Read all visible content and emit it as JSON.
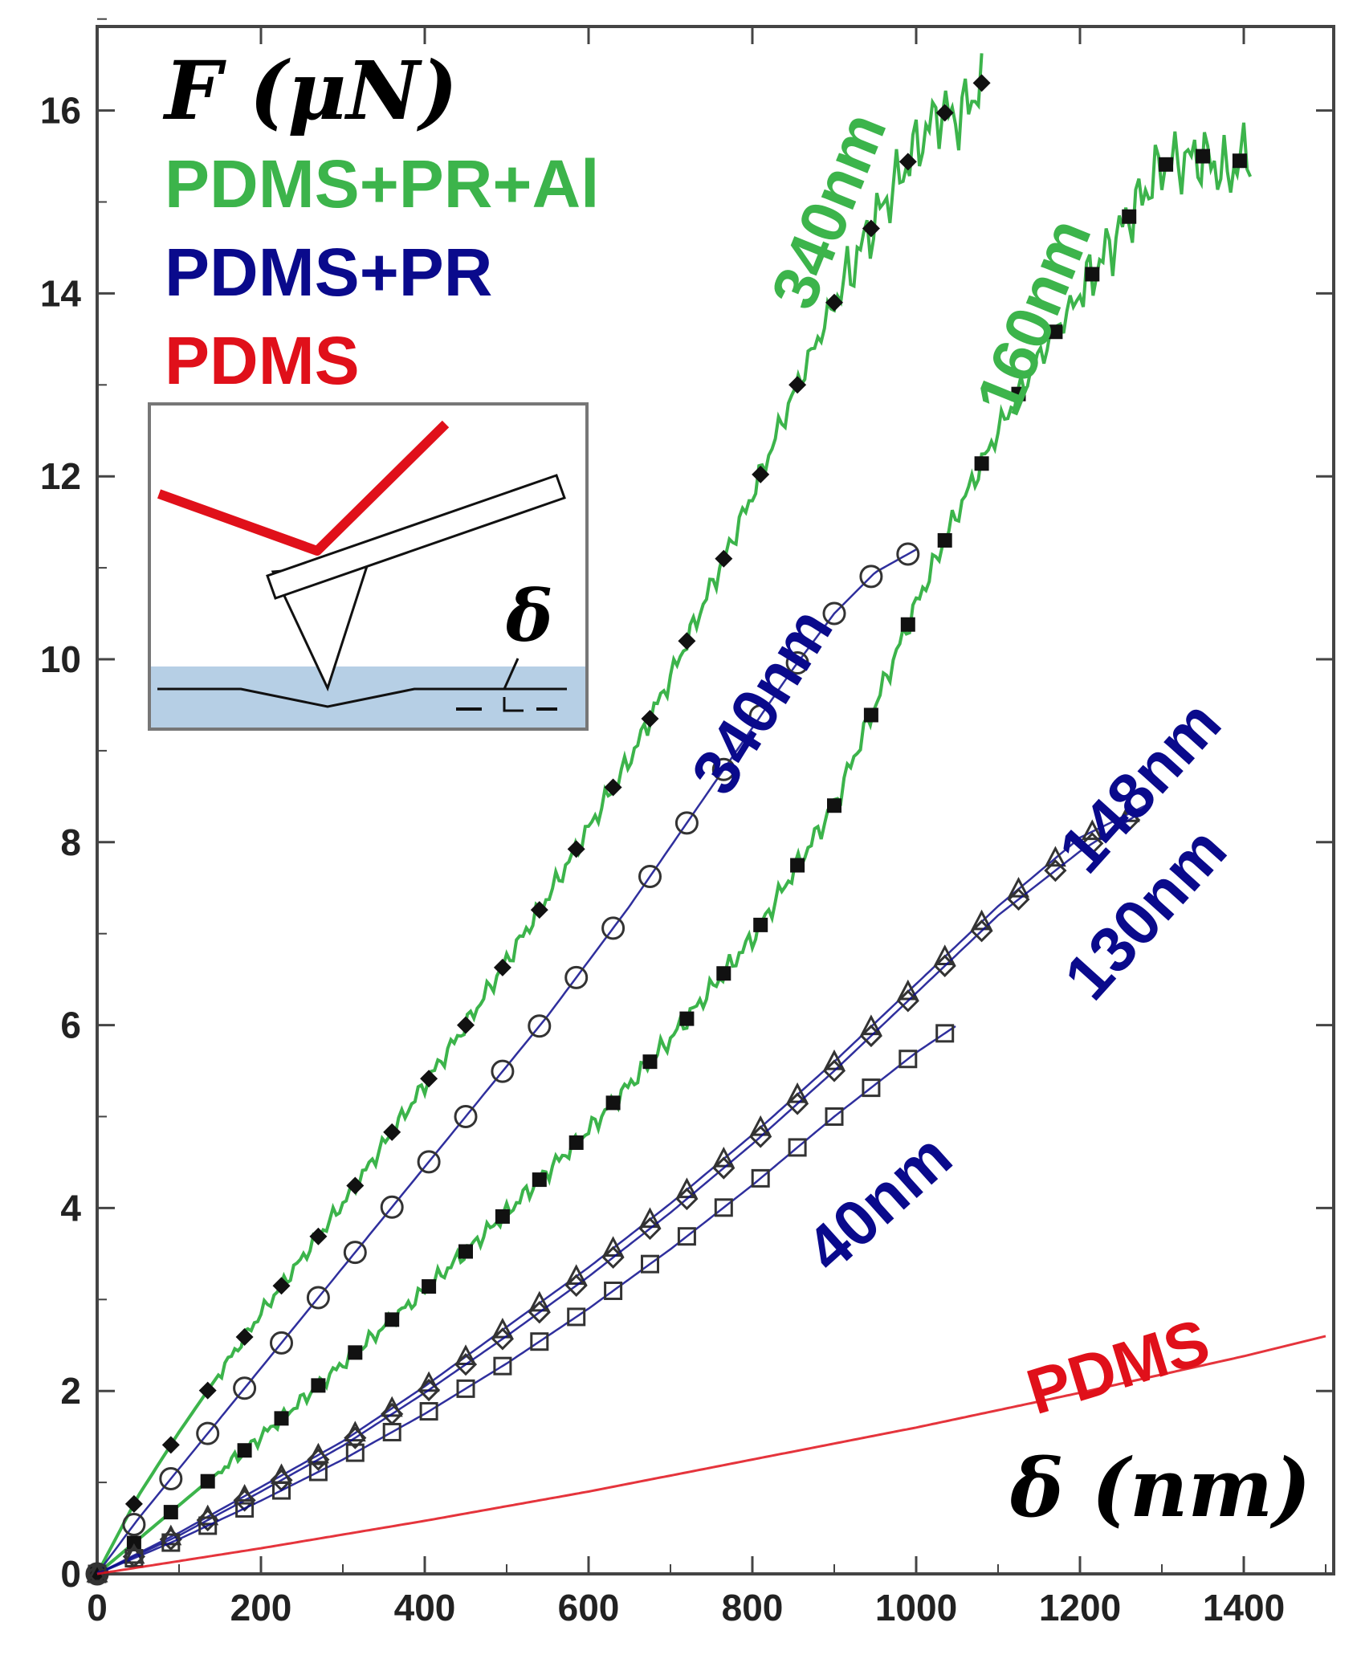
{
  "chart_data": {
    "type": "line",
    "ylabel": "F (μN)",
    "xlabel": "δ (nm)",
    "xlim": [
      0,
      1500
    ],
    "ylim": [
      0,
      17
    ],
    "xticks": [
      0,
      200,
      400,
      600,
      800,
      1000,
      1200,
      1400
    ],
    "yticks": [
      0,
      2,
      4,
      6,
      8,
      10,
      12,
      14,
      16
    ],
    "grid": false,
    "legend": {
      "placement": "top-left",
      "entries": [
        {
          "label": "PDMS+PR+Al",
          "color": "#3cb44b"
        },
        {
          "label": "PDMS+PR",
          "color": "#0a0a8c"
        },
        {
          "label": "PDMS",
          "color": "#e0101a"
        }
      ]
    },
    "inset": {
      "symbol": "δ",
      "description_color": "#a9c7e0"
    },
    "series": [
      {
        "group": "PDMS+PR+Al",
        "label": "340nm",
        "color": "#3cb44b",
        "marker": "filled-diamond",
        "x": [
          0,
          50,
          100,
          150,
          200,
          250,
          300,
          350,
          400,
          450,
          500,
          550,
          600,
          650,
          700,
          750,
          800,
          850,
          900,
          950,
          1000,
          1030,
          1050,
          1080
        ],
        "y": [
          0,
          0.85,
          1.55,
          2.2,
          2.85,
          3.45,
          4.05,
          4.7,
          5.35,
          6.0,
          6.7,
          7.4,
          8.15,
          8.9,
          9.8,
          10.8,
          11.8,
          12.9,
          13.9,
          14.8,
          15.6,
          16.0,
          15.9,
          16.3
        ]
      },
      {
        "group": "PDMS+PR+Al",
        "label": "160nm",
        "color": "#3cb44b",
        "marker": "filled-square",
        "x": [
          0,
          100,
          200,
          300,
          400,
          500,
          600,
          700,
          800,
          900,
          950,
          1000,
          1050,
          1100,
          1150,
          1200,
          1250,
          1300,
          1350,
          1380,
          1410
        ],
        "y": [
          0,
          0.75,
          1.5,
          2.3,
          3.1,
          3.95,
          4.85,
          5.85,
          6.95,
          8.4,
          9.5,
          10.6,
          11.6,
          12.5,
          13.3,
          14.0,
          14.7,
          15.4,
          15.5,
          15.3,
          15.6
        ]
      },
      {
        "group": "PDMS+PR",
        "label": "340nm",
        "color": "#0a0a8c",
        "marker": "open-circle",
        "x": [
          0,
          50,
          100,
          150,
          200,
          250,
          300,
          350,
          400,
          450,
          500,
          550,
          600,
          650,
          700,
          750,
          800,
          850,
          900,
          950,
          1000
        ],
        "y": [
          0,
          0.6,
          1.15,
          1.7,
          2.25,
          2.8,
          3.35,
          3.9,
          4.45,
          5.0,
          5.55,
          6.1,
          6.7,
          7.3,
          7.95,
          8.6,
          9.25,
          9.9,
          10.5,
          10.95,
          11.2
        ]
      },
      {
        "group": "PDMS+PR",
        "label": "148nm",
        "color": "#0a0a8c",
        "marker": "open-triangle",
        "x": [
          0,
          100,
          200,
          300,
          400,
          500,
          600,
          700,
          800,
          900,
          1000,
          1100,
          1200,
          1280
        ],
        "y": [
          0,
          0.45,
          0.95,
          1.45,
          2.05,
          2.7,
          3.35,
          4.05,
          4.8,
          5.6,
          6.45,
          7.3,
          8.05,
          8.4
        ]
      },
      {
        "group": "PDMS+PR",
        "label": "130nm",
        "color": "#0a0a8c",
        "marker": "open-diamond",
        "x": [
          0,
          100,
          200,
          300,
          400,
          500,
          600,
          700,
          800,
          900,
          1000,
          1100,
          1200,
          1270
        ],
        "y": [
          0,
          0.42,
          0.9,
          1.4,
          1.98,
          2.6,
          3.25,
          3.95,
          4.7,
          5.5,
          6.35,
          7.2,
          7.9,
          8.3
        ]
      },
      {
        "group": "PDMS+PR",
        "label": "40nm",
        "color": "#0a0a8c",
        "marker": "open-square",
        "x": [
          0,
          100,
          200,
          300,
          400,
          500,
          600,
          700,
          800,
          900,
          1000,
          1050
        ],
        "y": [
          0,
          0.38,
          0.8,
          1.25,
          1.75,
          2.3,
          2.9,
          3.55,
          4.25,
          5.0,
          5.7,
          6.0
        ]
      },
      {
        "group": "PDMS",
        "label": "PDMS",
        "color": "#e0101a",
        "marker": "none",
        "x": [
          0,
          200,
          400,
          600,
          800,
          1000,
          1200,
          1400,
          1500
        ],
        "y": [
          0,
          0.28,
          0.58,
          0.9,
          1.25,
          1.6,
          1.98,
          2.38,
          2.6
        ]
      }
    ]
  }
}
